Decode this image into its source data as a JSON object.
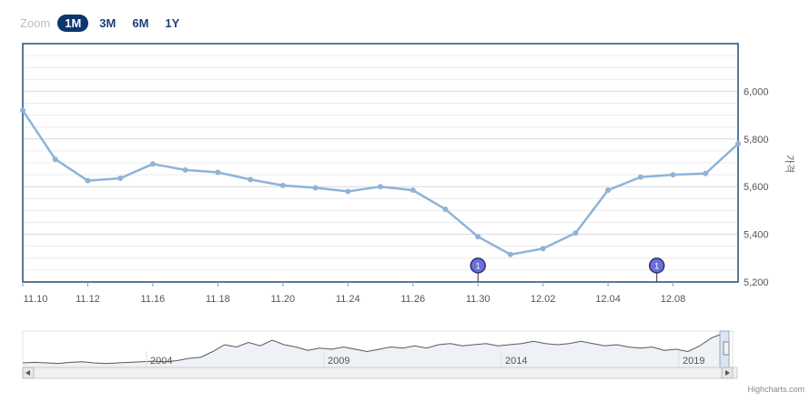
{
  "zoom": {
    "label": "Zoom",
    "buttons": [
      "1M",
      "3M",
      "6M",
      "1Y"
    ],
    "active": "1M"
  },
  "credits": "Highcharts.com",
  "colors": {
    "line": "#8fb3d9",
    "frame": "#1f4e79",
    "flag": "#6b70d8",
    "navigator_line": "#5a5a5a"
  },
  "chart_data": {
    "type": "line",
    "title": "",
    "xlabel": "",
    "ylabel": "가격",
    "ylim": [
      5200,
      6200
    ],
    "yticks": [
      "5,200",
      "5,400",
      "5,600",
      "5,800",
      "6,000"
    ],
    "xticks": [
      "11.10",
      "11.12",
      "11.16",
      "11.18",
      "11.20",
      "11.24",
      "11.26",
      "11.30",
      "12.02",
      "12.04",
      "12.08"
    ],
    "x_index_range": [
      0,
      22
    ],
    "xtick_index": [
      0,
      2,
      4,
      6,
      8,
      10,
      12,
      14,
      16,
      18,
      20
    ],
    "series": [
      {
        "values": [
          5920,
          5715,
          5625,
          5635,
          5695,
          5670,
          5660,
          5630,
          5605,
          5595,
          5580,
          5600,
          5585,
          5505,
          5390,
          5315,
          5340,
          5405,
          5585,
          5640,
          5650,
          5655,
          5780
        ]
      }
    ],
    "flags": [
      {
        "index": 14,
        "text": "1"
      },
      {
        "index": 19.5,
        "text": "1"
      }
    ],
    "navigator": {
      "year_labels": [
        "2004",
        "2009",
        "2014",
        "2019"
      ],
      "year_label_pos": [
        0.25,
        0.5,
        0.75,
        1.0
      ],
      "values": [
        4200,
        4250,
        4200,
        4150,
        4250,
        4300,
        4200,
        4150,
        4200,
        4250,
        4300,
        4350,
        4300,
        4400,
        4600,
        4700,
        5200,
        5800,
        5600,
        6000,
        5700,
        6200,
        5800,
        5600,
        5300,
        5500,
        5400,
        5600,
        5400,
        5200,
        5400,
        5600,
        5500,
        5700,
        5500,
        5800,
        5900,
        5700,
        5800,
        5900,
        5700,
        5800,
        5900,
        6100,
        5900,
        5800,
        5900,
        6100,
        5900,
        5700,
        5800,
        5600,
        5500,
        5600,
        5300,
        5400,
        5200,
        5700,
        6400,
        6800
      ]
    }
  }
}
